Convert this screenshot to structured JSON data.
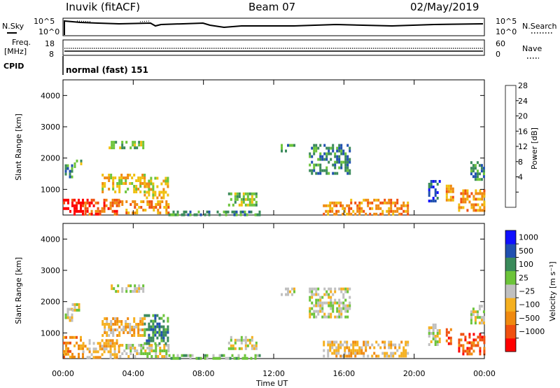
{
  "header": {
    "radar": "Inuvik (fitACF)",
    "beam": "Beam 07",
    "date": "02/May/2019"
  },
  "status_panels": {
    "nsky_label": "N.Sky",
    "nsky_ticks": [
      "10^5",
      "10^0"
    ],
    "nsearch_label": "N.Search",
    "nsearch_ticks": [
      "10^5",
      "10^0"
    ],
    "freq_label": "Freq.",
    "freq_unit": "[MHz]",
    "freq_ticks": [
      "18",
      "8"
    ],
    "nave_label": "Nave",
    "nave_ticks": [
      "60",
      "0"
    ],
    "cpid_label": "CPID",
    "cpid_text": "normal (fast) 151"
  },
  "chart_data": [
    {
      "type": "heatmap",
      "name": "power",
      "ylabel": "Slant Range [km]",
      "xlabel": "Time UT",
      "ylim": [
        180,
        4500
      ],
      "x_ticks": [
        "00:00",
        "04:00",
        "08:00",
        "12:00",
        "16:00",
        "20:00",
        "00:00"
      ],
      "y_ticks": [
        1000,
        2000,
        3000,
        4000
      ],
      "colorbar": {
        "label": "Power [dB]",
        "ticks": [
          "28",
          "24",
          "20",
          "16",
          "12",
          "8",
          "4"
        ],
        "colors": [
          "#1010ff",
          "#2050b0",
          "#3a8a5a",
          "#6cc43a",
          "#f0c010",
          "#f08a10",
          "#f05010",
          "#ff0000"
        ]
      },
      "echo_regions": [
        {
          "t": [
            0.0,
            1.1
          ],
          "r": [
            250,
            700
          ],
          "level": 7
        },
        {
          "t": [
            1.1,
            3.2
          ],
          "r": [
            250,
            700
          ],
          "level": 6
        },
        {
          "t": [
            3.2,
            6.0
          ],
          "r": [
            250,
            650
          ],
          "level": 5
        },
        {
          "t": [
            2.2,
            4.6
          ],
          "r": [
            900,
            1500
          ],
          "level": 4
        },
        {
          "t": [
            4.6,
            6.0
          ],
          "r": [
            700,
            1400
          ],
          "level": 4
        },
        {
          "t": [
            0.1,
            0.5
          ],
          "r": [
            1400,
            1800
          ],
          "level": 2
        },
        {
          "t": [
            0.5,
            1.0
          ],
          "r": [
            1700,
            1950
          ],
          "level": 3
        },
        {
          "t": [
            2.6,
            4.6
          ],
          "r": [
            2300,
            2550
          ],
          "level": 3
        },
        {
          "t": [
            6.0,
            11.2
          ],
          "r": [
            200,
            320
          ],
          "level": 2
        },
        {
          "t": [
            9.4,
            11.0
          ],
          "r": [
            480,
            900
          ],
          "level": 3
        },
        {
          "t": [
            12.4,
            13.2
          ],
          "r": [
            2250,
            2450
          ],
          "level": 2
        },
        {
          "t": [
            14.0,
            16.3
          ],
          "r": [
            1550,
            2450
          ],
          "level": 2
        },
        {
          "t": [
            14.8,
            19.6
          ],
          "r": [
            250,
            700
          ],
          "level": 5
        },
        {
          "t": [
            20.8,
            21.5
          ],
          "r": [
            600,
            1300
          ],
          "level": 1
        },
        {
          "t": [
            21.8,
            22.2
          ],
          "r": [
            700,
            1150
          ],
          "level": 5
        },
        {
          "t": [
            22.5,
            24.0
          ],
          "r": [
            300,
            1000
          ],
          "level": 5
        },
        {
          "t": [
            23.2,
            24.0
          ],
          "r": [
            1300,
            1900
          ],
          "level": 2
        }
      ]
    },
    {
      "type": "heatmap",
      "name": "velocity",
      "ylabel": "Slant Range [km]",
      "xlabel": "Time UT",
      "ylim": [
        180,
        4500
      ],
      "x_ticks": [
        "00:00",
        "04:00",
        "08:00",
        "12:00",
        "16:00",
        "20:00",
        "00:00"
      ],
      "y_ticks": [
        1000,
        2000,
        3000,
        4000
      ],
      "colorbar": {
        "label": "Velocity [m s⁻¹]",
        "ticks": [
          "1000",
          "500",
          "100",
          "25",
          "−25",
          "−100",
          "−500",
          "−1000"
        ],
        "colors": [
          "#ff0000",
          "#f05010",
          "#f08a10",
          "#f5b020",
          "#c0c0c0",
          "#6cc43a",
          "#3a8a5a",
          "#2050b0",
          "#1010ff"
        ]
      },
      "echo_regions": [
        {
          "t": [
            0.0,
            1.1
          ],
          "r": [
            250,
            900
          ],
          "level": 2
        },
        {
          "t": [
            1.1,
            3.2
          ],
          "r": [
            250,
            800
          ],
          "level": 3
        },
        {
          "t": [
            3.2,
            6.0
          ],
          "r": [
            250,
            650
          ],
          "level": 4
        },
        {
          "t": [
            2.2,
            4.6
          ],
          "r": [
            900,
            1500
          ],
          "level": 3
        },
        {
          "t": [
            4.6,
            6.0
          ],
          "r": [
            700,
            1600
          ],
          "level": 6
        },
        {
          "t": [
            0.1,
            0.5
          ],
          "r": [
            1400,
            1800
          ],
          "level": 4
        },
        {
          "t": [
            0.5,
            1.0
          ],
          "r": [
            1700,
            1950
          ],
          "level": 4
        },
        {
          "t": [
            2.6,
            4.6
          ],
          "r": [
            2300,
            2550
          ],
          "level": 4
        },
        {
          "t": [
            6.0,
            11.2
          ],
          "r": [
            200,
            320
          ],
          "level": 5
        },
        {
          "t": [
            9.4,
            11.0
          ],
          "r": [
            480,
            900
          ],
          "level": 4
        },
        {
          "t": [
            12.4,
            13.2
          ],
          "r": [
            2250,
            2450
          ],
          "level": 4
        },
        {
          "t": [
            14.0,
            16.3
          ],
          "r": [
            1550,
            2450
          ],
          "level": 4
        },
        {
          "t": [
            14.8,
            19.6
          ],
          "r": [
            250,
            750
          ],
          "level": 3
        },
        {
          "t": [
            20.8,
            21.5
          ],
          "r": [
            600,
            1300
          ],
          "level": 4
        },
        {
          "t": [
            21.8,
            22.2
          ],
          "r": [
            700,
            1150
          ],
          "level": 1
        },
        {
          "t": [
            22.5,
            24.0
          ],
          "r": [
            300,
            1000
          ],
          "level": 1
        },
        {
          "t": [
            23.2,
            24.0
          ],
          "r": [
            1300,
            1900
          ],
          "level": 4
        }
      ]
    }
  ]
}
